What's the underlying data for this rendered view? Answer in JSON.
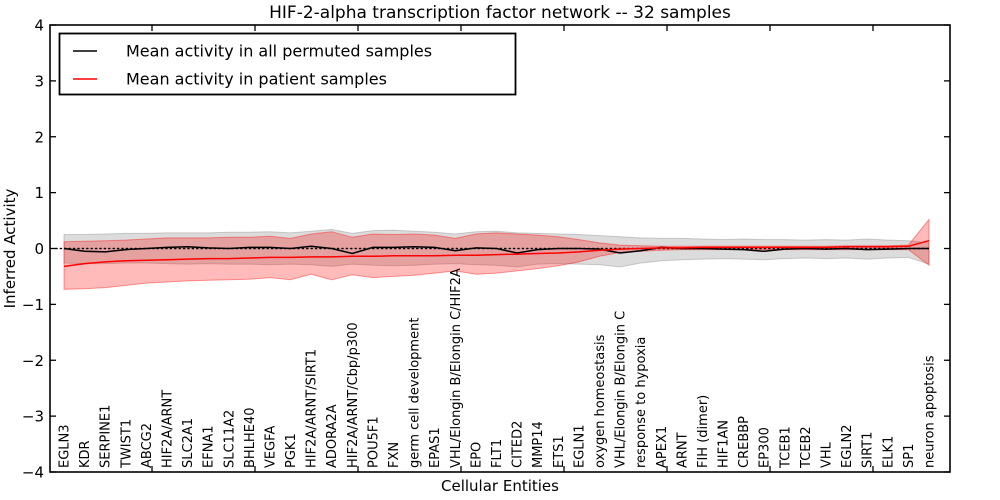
{
  "chart_data": {
    "type": "line",
    "title": "HIF-2-alpha transcription factor network -- 32 samples",
    "xlabel": "Cellular Entities",
    "ylabel": "Inferred Activity",
    "ylim": [
      -4,
      4
    ],
    "yticks": [
      4,
      3,
      2,
      1,
      0,
      -1,
      -2,
      -3,
      -4
    ],
    "ytick_labels": [
      "4",
      "3",
      "2",
      "1",
      "0",
      "−1",
      "−2",
      "−3",
      "−4"
    ],
    "grid": false,
    "legend_position": "upper left",
    "zero_baseline": {
      "value": 0,
      "style": "dotted",
      "color": "#000000"
    },
    "categories": [
      "EGLN3",
      "KDR",
      "SERPINE1",
      "TWIST1",
      "ABCG2",
      "HIF2A/ARNT",
      "SLC2A1",
      "EFNA1",
      "SLC11A2",
      "BHLHE40",
      "VEGFA",
      "PGK1",
      "HIF2A/ARNT/SIRT1",
      "ADORA2A",
      "HIF2A/ARNT/Cbp/p300",
      "POU5F1",
      "FXN",
      "germ cell development",
      "EPAS1",
      "VHL/Elongin B/Elongin C/HIF2A",
      "EPO",
      "FLT1",
      "CITED2",
      "MMP14",
      "ETS1",
      "EGLN1",
      "oxygen homeostasis",
      "VHL/Elongin B/Elongin C",
      "response to hypoxia",
      "APEX1",
      "ARNT",
      "FIH (dimer)",
      "HIF1AN",
      "CREBBP",
      "EP300",
      "TCEB1",
      "TCEB2",
      "VHL",
      "EGLN2",
      "SIRT1",
      "ELK1",
      "SP1",
      "neuron apoptosis"
    ],
    "series": [
      {
        "name": "Mean activity in all permuted samples",
        "color": "#000000",
        "style": "solid",
        "values": [
          0.0,
          -0.05,
          -0.06,
          -0.02,
          0.0,
          0.02,
          0.03,
          0.01,
          0.0,
          0.02,
          0.02,
          0.0,
          0.04,
          0.0,
          -0.09,
          0.02,
          0.02,
          0.03,
          0.02,
          -0.04,
          0.01,
          0.0,
          -0.08,
          -0.02,
          0.0,
          0.0,
          -0.01,
          -0.08,
          -0.04,
          0.02,
          0.0,
          0.0,
          -0.01,
          -0.02,
          -0.05,
          -0.01,
          0.0,
          -0.01,
          0.0,
          -0.02,
          -0.01,
          0.0,
          0.0
        ]
      },
      {
        "name": "Mean activity in patient samples",
        "color": "#ff0000",
        "style": "solid",
        "values": [
          -0.32,
          -0.27,
          -0.24,
          -0.22,
          -0.21,
          -0.2,
          -0.19,
          -0.18,
          -0.18,
          -0.17,
          -0.16,
          -0.16,
          -0.15,
          -0.15,
          -0.14,
          -0.14,
          -0.13,
          -0.13,
          -0.13,
          -0.12,
          -0.12,
          -0.11,
          -0.1,
          -0.09,
          -0.08,
          -0.06,
          -0.03,
          -0.01,
          0.0,
          0.01,
          0.01,
          0.02,
          0.02,
          0.02,
          0.02,
          0.02,
          0.02,
          0.02,
          0.03,
          0.03,
          0.03,
          0.04,
          0.14
        ]
      }
    ],
    "bands": [
      {
        "name": "permuted-samples-std-band",
        "color": "#8c8c8c",
        "opacity": 0.3,
        "upper": [
          0.25,
          0.25,
          0.26,
          0.27,
          0.27,
          0.28,
          0.28,
          0.28,
          0.29,
          0.29,
          0.3,
          0.28,
          0.31,
          0.34,
          0.27,
          0.32,
          0.33,
          0.31,
          0.29,
          0.26,
          0.3,
          0.31,
          0.28,
          0.27,
          0.26,
          0.25,
          0.23,
          0.21,
          0.19,
          0.18,
          0.18,
          0.17,
          0.16,
          0.17,
          0.16,
          0.16,
          0.15,
          0.16,
          0.15,
          0.17,
          0.15,
          0.14,
          0.1
        ],
        "lower": [
          -0.26,
          -0.27,
          -0.27,
          -0.26,
          -0.26,
          -0.27,
          -0.28,
          -0.27,
          -0.28,
          -0.28,
          -0.29,
          -0.28,
          -0.29,
          -0.32,
          -0.28,
          -0.3,
          -0.31,
          -0.3,
          -0.28,
          -0.27,
          -0.29,
          -0.3,
          -0.33,
          -0.28,
          -0.27,
          -0.28,
          -0.29,
          -0.33,
          -0.26,
          -0.22,
          -0.2,
          -0.19,
          -0.18,
          -0.19,
          -0.2,
          -0.18,
          -0.17,
          -0.18,
          -0.17,
          -0.19,
          -0.17,
          -0.16,
          -0.28
        ]
      },
      {
        "name": "patient-samples-std-band",
        "color": "#ff0000",
        "opacity": 0.27,
        "upper": [
          0.12,
          0.13,
          0.14,
          0.15,
          0.17,
          0.19,
          0.19,
          0.19,
          0.2,
          0.2,
          0.22,
          0.18,
          0.26,
          0.3,
          0.2,
          0.26,
          0.25,
          0.26,
          0.24,
          0.18,
          0.26,
          0.28,
          0.26,
          0.24,
          0.21,
          0.16,
          0.1,
          0.06,
          0.05,
          0.04,
          0.04,
          0.04,
          0.04,
          0.04,
          0.04,
          0.04,
          0.04,
          0.04,
          0.05,
          0.05,
          0.05,
          0.06,
          0.52
        ],
        "lower": [
          -0.73,
          -0.72,
          -0.7,
          -0.66,
          -0.62,
          -0.6,
          -0.58,
          -0.57,
          -0.56,
          -0.55,
          -0.52,
          -0.56,
          -0.46,
          -0.56,
          -0.47,
          -0.52,
          -0.5,
          -0.48,
          -0.44,
          -0.4,
          -0.46,
          -0.44,
          -0.4,
          -0.36,
          -0.31,
          -0.24,
          -0.14,
          -0.07,
          -0.05,
          -0.03,
          -0.02,
          -0.02,
          -0.02,
          -0.02,
          -0.02,
          -0.02,
          -0.02,
          -0.02,
          -0.02,
          -0.02,
          -0.02,
          -0.02,
          -0.3
        ]
      }
    ]
  },
  "legend": {
    "entries": [
      {
        "label": "Mean activity in all permuted samples",
        "color": "#000000"
      },
      {
        "label": "Mean activity in patient samples",
        "color": "#ff0000"
      }
    ]
  }
}
